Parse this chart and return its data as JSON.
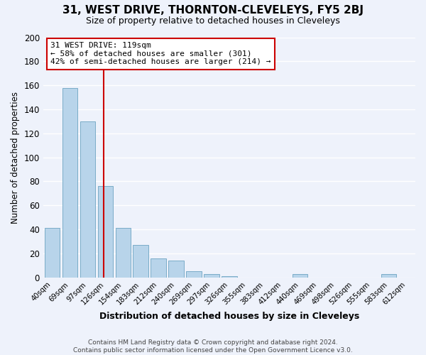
{
  "title": "31, WEST DRIVE, THORNTON-CLEVELEYS, FY5 2BJ",
  "subtitle": "Size of property relative to detached houses in Cleveleys",
  "xlabel": "Distribution of detached houses by size in Cleveleys",
  "ylabel": "Number of detached properties",
  "bar_labels": [
    "40sqm",
    "69sqm",
    "97sqm",
    "126sqm",
    "154sqm",
    "183sqm",
    "212sqm",
    "240sqm",
    "269sqm",
    "297sqm",
    "326sqm",
    "355sqm",
    "383sqm",
    "412sqm",
    "440sqm",
    "469sqm",
    "498sqm",
    "526sqm",
    "555sqm",
    "583sqm",
    "612sqm"
  ],
  "bar_values": [
    41,
    158,
    130,
    76,
    41,
    27,
    16,
    14,
    5,
    3,
    1,
    0,
    0,
    0,
    3,
    0,
    0,
    0,
    0,
    3,
    0
  ],
  "bar_color": "#b8d4ea",
  "bar_edge_color": "#7aacc8",
  "vline_color": "#cc0000",
  "annotation_text_line1": "31 WEST DRIVE: 119sqm",
  "annotation_text_line2": "← 58% of detached houses are smaller (301)",
  "annotation_text_line3": "42% of semi-detached houses are larger (214) →",
  "annotation_box_color": "white",
  "annotation_box_edge": "#cc0000",
  "ylim": [
    0,
    200
  ],
  "yticks": [
    0,
    20,
    40,
    60,
    80,
    100,
    120,
    140,
    160,
    180,
    200
  ],
  "footer_line1": "Contains HM Land Registry data © Crown copyright and database right 2024.",
  "footer_line2": "Contains public sector information licensed under the Open Government Licence v3.0.",
  "bg_color": "#eef2fb",
  "grid_color": "white"
}
